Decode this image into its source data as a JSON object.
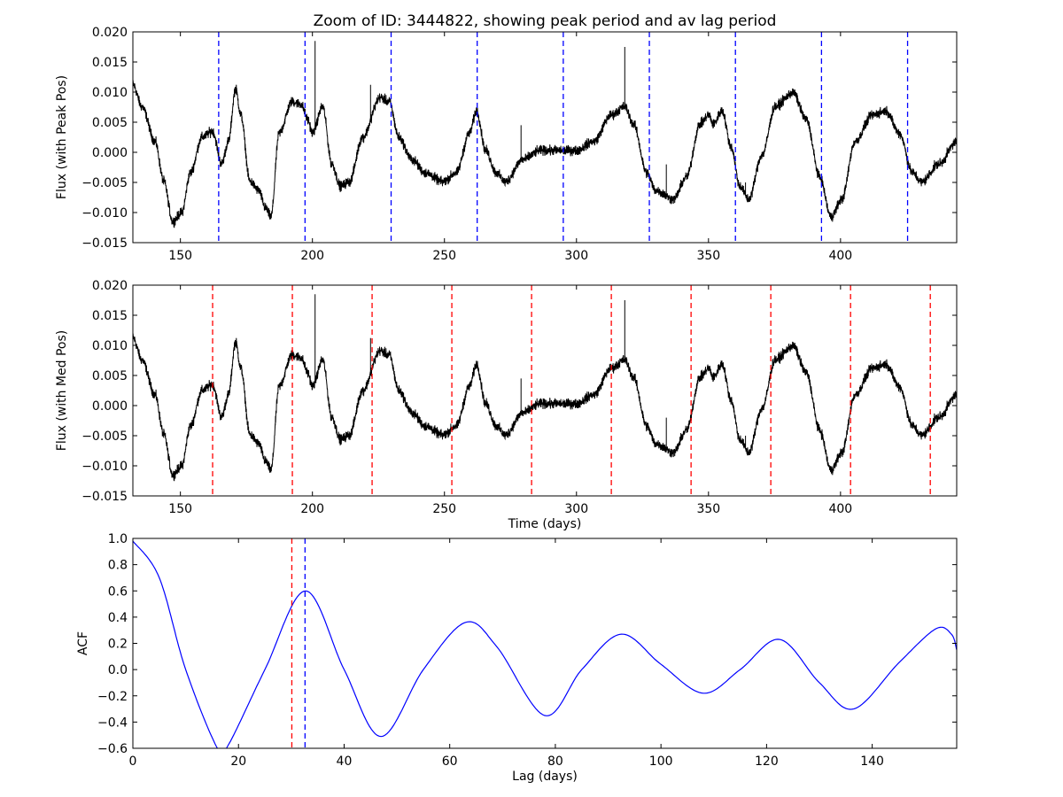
{
  "chart_data": [
    {
      "type": "line",
      "title": "Zoom of ID: 3444822, showing peak period and av lag period",
      "xlabel": "",
      "ylabel": "Flux (with Peak Pos)",
      "xlim": [
        132,
        444
      ],
      "ylim": [
        -0.015,
        0.02
      ],
      "xticks": [
        150,
        200,
        250,
        300,
        350,
        400
      ],
      "yticks": [
        "0.020",
        "0.015",
        "0.010",
        "0.005",
        "0.000",
        "−0.005",
        "−0.010",
        "−0.015"
      ],
      "yticks_values": [
        0.02,
        0.015,
        0.01,
        0.005,
        0.0,
        -0.005,
        -0.01,
        -0.015
      ],
      "series_color": "#000000",
      "vlines": [
        164.5,
        197.2,
        229.8,
        262.4,
        295.0,
        327.6,
        360.2,
        392.8,
        425.4
      ],
      "vline_color": "#0000ff"
    },
    {
      "type": "line",
      "xlabel": "Time (days)",
      "ylabel": "Flux (with Med Pos)",
      "xlim": [
        132,
        444
      ],
      "ylim": [
        -0.015,
        0.02
      ],
      "xticks": [
        150,
        200,
        250,
        300,
        350,
        400
      ],
      "yticks": [
        "0.020",
        "0.015",
        "0.010",
        "0.005",
        "0.000",
        "−0.005",
        "−0.010",
        "−0.015"
      ],
      "yticks_values": [
        0.02,
        0.015,
        0.01,
        0.005,
        0.0,
        -0.005,
        -0.01,
        -0.015
      ],
      "series_color": "#000000",
      "vlines": [
        162.2,
        192.4,
        222.6,
        252.8,
        283.0,
        313.2,
        343.4,
        373.6,
        403.8,
        434.0
      ],
      "vline_color": "#ff0000"
    },
    {
      "type": "line",
      "xlabel": "Lag (days)",
      "ylabel": "ACF",
      "xlim": [
        0,
        156
      ],
      "ylim": [
        -0.6,
        1.0
      ],
      "xticks": [
        0,
        20,
        40,
        60,
        80,
        100,
        120,
        140
      ],
      "yticks": [
        "1.0",
        "0.8",
        "0.6",
        "0.4",
        "0.2",
        "0.0",
        "−0.2",
        "−0.4",
        "−0.6"
      ],
      "yticks_values": [
        1.0,
        0.8,
        0.6,
        0.4,
        0.2,
        0.0,
        -0.2,
        -0.4,
        -0.6
      ],
      "series_color": "#0000ff",
      "acf": {
        "lag": [
          0,
          5,
          10,
          16,
          18,
          25,
          32.7,
          40,
          47,
          55,
          63,
          69,
          78,
          85,
          92.5,
          100,
          108,
          115,
          122.5,
          130,
          136.5,
          145,
          152,
          155,
          156
        ],
        "value": [
          0.98,
          0.7,
          0.0,
          -0.6,
          -0.58,
          0.0,
          0.6,
          0.0,
          -0.51,
          0.0,
          0.36,
          0.17,
          -0.35,
          0.0,
          0.27,
          0.04,
          -0.18,
          0.0,
          0.23,
          -0.1,
          -0.3,
          0.05,
          0.31,
          0.27,
          0.15
        ]
      },
      "vlines": [
        30.1,
        32.6
      ],
      "vline_colors": [
        "#ff0000",
        "#0000ff"
      ]
    }
  ],
  "light_curve": {
    "time": [
      132,
      135.4,
      140.4,
      143.7,
      147.1,
      150.5,
      153.8,
      158.2,
      162.2,
      165.6,
      168.2,
      170.9,
      172.9,
      176.3,
      179.6,
      182.3,
      184.3,
      187.4,
      192.3,
      195.7,
      198.3,
      200,
      203.9,
      207.3,
      210.6,
      214,
      219,
      225.7,
      229.1,
      232.7,
      237.7,
      242.7,
      249.4,
      254.5,
      259.5,
      262.2,
      265.6,
      269.6,
      273,
      279.7,
      286.4,
      293.1,
      299.8,
      306.5,
      313.2,
      318.3,
      321.6,
      326.6,
      330,
      336.7,
      341.7,
      346.8,
      350.1,
      351.8,
      355.2,
      358.5,
      361.9,
      365.2,
      370.3,
      375.3,
      382,
      387.1,
      392.1,
      396.4,
      400.5,
      405.5,
      412.2,
      417.2,
      422.3,
      427.3,
      430.7,
      437.4,
      444
    ],
    "flux": [
      0.0113,
      0.0076,
      0.0018,
      -0.0048,
      -0.0115,
      -0.01,
      -0.0034,
      0.0025,
      0.0035,
      -0.0019,
      0.0018,
      0.0106,
      0.0062,
      -0.0048,
      -0.0063,
      -0.0093,
      -0.0107,
      0.0032,
      0.0084,
      0.008,
      0.0054,
      0.0032,
      0.0076,
      -0.0019,
      -0.0056,
      -0.0049,
      0.0025,
      0.0091,
      0.0084,
      0.0025,
      -0.0012,
      -0.0034,
      -0.0049,
      -0.0034,
      0.0032,
      0.0069,
      0.0003,
      -0.0034,
      -0.0049,
      -0.0012,
      0.0003,
      0.0003,
      0.0003,
      0.0018,
      0.0062,
      0.0076,
      0.0047,
      -0.0034,
      -0.0063,
      -0.0078,
      -0.0041,
      0.0047,
      0.0062,
      0.0047,
      0.0069,
      0.001,
      -0.0056,
      -0.0078,
      -0.0004,
      0.0076,
      0.0099,
      0.0054,
      -0.0041,
      -0.0107,
      -0.0078,
      0.0018,
      0.0062,
      0.0069,
      0.0032,
      -0.0034,
      -0.0049,
      -0.0019,
      0.0018
    ],
    "spikes": [
      [
        201,
        0.0185
      ],
      [
        318.3,
        0.0175
      ],
      [
        279,
        0.0045
      ],
      [
        222,
        0.0112
      ],
      [
        334,
        -0.002
      ],
      [
        364,
        -0.005
      ]
    ],
    "noise_amplitude": 0.0008
  }
}
